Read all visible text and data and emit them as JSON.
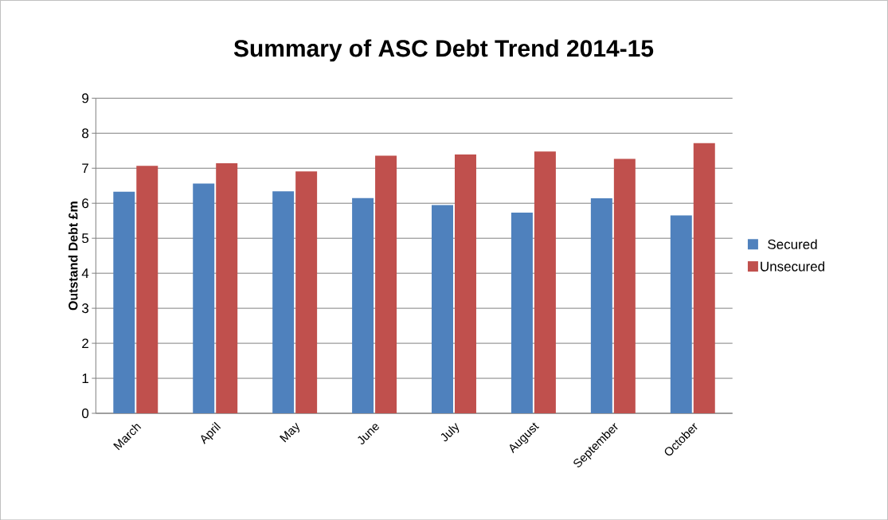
{
  "chart_data": {
    "type": "bar",
    "title": "Summary of ASC Debt Trend 2014-15",
    "ylabel": "Outstand Debt £m",
    "categories": [
      "March",
      "April",
      "May",
      "June",
      "July",
      "August",
      "September",
      "October"
    ],
    "series": [
      {
        "name": "Secured",
        "color": "#4f81bd",
        "values": [
          6.33,
          6.56,
          6.34,
          6.15,
          5.95,
          5.73,
          6.14,
          5.65
        ]
      },
      {
        "name": "Unsecured",
        "color": "#c0504d",
        "values": [
          7.07,
          7.14,
          6.91,
          7.36,
          7.39,
          7.48,
          7.27,
          7.72
        ]
      }
    ],
    "ylim": [
      0,
      9
    ],
    "yticks": [
      0,
      1,
      2,
      3,
      4,
      5,
      6,
      7,
      8,
      9
    ],
    "grid": "y",
    "legend": "right"
  }
}
